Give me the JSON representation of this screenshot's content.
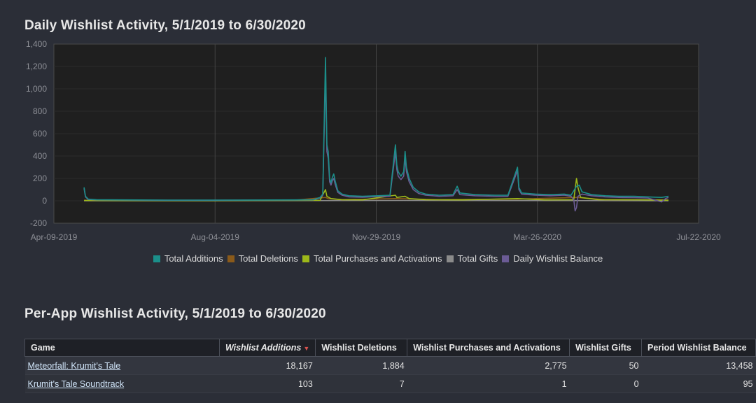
{
  "title_daily": "Daily Wishlist Activity, 5/1/2019 to 6/30/2020",
  "title_per_app": "Per-App Wishlist Activity, 5/1/2019 to 6/30/2020",
  "chart_data": {
    "type": "line",
    "title": "Daily Wishlist Activity, 5/1/2019 to 6/30/2020",
    "xlabel": "",
    "ylabel": "",
    "x_range": [
      "2019-04-09",
      "2020-07-22"
    ],
    "x_ticks": [
      "Apr-09-2019",
      "Aug-04-2019",
      "Nov-29-2019",
      "Mar-26-2020",
      "Jul-22-2020"
    ],
    "ylim": [
      -200,
      1400
    ],
    "y_ticks": [
      "-200",
      "0",
      "200",
      "400",
      "600",
      "800",
      "1,000",
      "1,200",
      "1,400"
    ],
    "grid": true,
    "legend_position": "bottom-center",
    "series": [
      {
        "name": "Total Additions",
        "color": "#1b8f8a",
        "points": [
          [
            "2019-05-01",
            120
          ],
          [
            "2019-05-02",
            40
          ],
          [
            "2019-05-04",
            15
          ],
          [
            "2019-05-10",
            10
          ],
          [
            "2019-06-01",
            8
          ],
          [
            "2019-07-01",
            6
          ],
          [
            "2019-08-01",
            6
          ],
          [
            "2019-09-01",
            7
          ],
          [
            "2019-10-01",
            8
          ],
          [
            "2019-10-15",
            10
          ],
          [
            "2019-10-20",
            30
          ],
          [
            "2019-10-22",
            60
          ],
          [
            "2019-10-24",
            1280
          ],
          [
            "2019-10-25",
            500
          ],
          [
            "2019-10-26",
            440
          ],
          [
            "2019-10-27",
            200
          ],
          [
            "2019-10-28",
            160
          ],
          [
            "2019-10-29",
            210
          ],
          [
            "2019-10-30",
            240
          ],
          [
            "2019-10-31",
            180
          ],
          [
            "2019-11-02",
            90
          ],
          [
            "2019-11-05",
            60
          ],
          [
            "2019-11-10",
            45
          ],
          [
            "2019-11-20",
            40
          ],
          [
            "2019-12-01",
            45
          ],
          [
            "2019-12-10",
            50
          ],
          [
            "2019-12-14",
            500
          ],
          [
            "2019-12-15",
            320
          ],
          [
            "2019-12-16",
            260
          ],
          [
            "2019-12-18",
            220
          ],
          [
            "2019-12-20",
            260
          ],
          [
            "2019-12-21",
            440
          ],
          [
            "2019-12-22",
            300
          ],
          [
            "2019-12-24",
            200
          ],
          [
            "2019-12-27",
            120
          ],
          [
            "2019-12-31",
            80
          ],
          [
            "2020-01-05",
            60
          ],
          [
            "2020-01-15",
            50
          ],
          [
            "2020-01-25",
            55
          ],
          [
            "2020-01-28",
            130
          ],
          [
            "2020-01-30",
            70
          ],
          [
            "2020-02-10",
            55
          ],
          [
            "2020-02-25",
            50
          ],
          [
            "2020-03-05",
            50
          ],
          [
            "2020-03-12",
            300
          ],
          [
            "2020-03-13",
            120
          ],
          [
            "2020-03-15",
            70
          ],
          [
            "2020-03-25",
            60
          ],
          [
            "2020-04-05",
            55
          ],
          [
            "2020-04-15",
            60
          ],
          [
            "2020-04-20",
            50
          ],
          [
            "2020-04-24",
            130
          ],
          [
            "2020-04-26",
            140
          ],
          [
            "2020-04-28",
            80
          ],
          [
            "2020-05-05",
            55
          ],
          [
            "2020-05-15",
            45
          ],
          [
            "2020-05-25",
            40
          ],
          [
            "2020-06-05",
            40
          ],
          [
            "2020-06-15",
            35
          ],
          [
            "2020-06-25",
            30
          ],
          [
            "2020-06-30",
            40
          ]
        ]
      },
      {
        "name": "Total Deletions",
        "color": "#8a5a1a",
        "points": [
          [
            "2019-05-01",
            5
          ],
          [
            "2019-06-01",
            4
          ],
          [
            "2019-07-01",
            3
          ],
          [
            "2019-08-01",
            3
          ],
          [
            "2019-09-01",
            4
          ],
          [
            "2019-10-01",
            5
          ],
          [
            "2019-10-24",
            30
          ],
          [
            "2019-10-26",
            20
          ],
          [
            "2019-11-05",
            10
          ],
          [
            "2019-12-14",
            20
          ],
          [
            "2019-12-21",
            18
          ],
          [
            "2020-01-15",
            10
          ],
          [
            "2020-03-12",
            15
          ],
          [
            "2020-04-24",
            30
          ],
          [
            "2020-05-15",
            10
          ],
          [
            "2020-06-30",
            8
          ]
        ]
      },
      {
        "name": "Total Purchases and Activations",
        "color": "#9db81a",
        "points": [
          [
            "2019-05-01",
            3
          ],
          [
            "2019-06-01",
            2
          ],
          [
            "2019-07-01",
            2
          ],
          [
            "2019-08-01",
            2
          ],
          [
            "2019-09-01",
            3
          ],
          [
            "2019-10-01",
            3
          ],
          [
            "2019-10-20",
            5
          ],
          [
            "2019-10-24",
            100
          ],
          [
            "2019-10-25",
            40
          ],
          [
            "2019-10-28",
            20
          ],
          [
            "2019-11-05",
            10
          ],
          [
            "2019-11-20",
            8
          ],
          [
            "2019-12-14",
            50
          ],
          [
            "2019-12-15",
            30
          ],
          [
            "2019-12-21",
            40
          ],
          [
            "2019-12-24",
            20
          ],
          [
            "2020-01-05",
            10
          ],
          [
            "2020-02-01",
            8
          ],
          [
            "2020-03-12",
            20
          ],
          [
            "2020-04-01",
            8
          ],
          [
            "2020-04-22",
            10
          ],
          [
            "2020-04-24",
            200
          ],
          [
            "2020-04-25",
            120
          ],
          [
            "2020-04-27",
            30
          ],
          [
            "2020-05-10",
            10
          ],
          [
            "2020-06-10",
            8
          ],
          [
            "2020-06-30",
            5
          ]
        ]
      },
      {
        "name": "Total Gifts",
        "color": "#8b8b8b",
        "points": [
          [
            "2019-05-01",
            0
          ],
          [
            "2019-08-01",
            0
          ],
          [
            "2019-10-24",
            2
          ],
          [
            "2019-12-21",
            3
          ],
          [
            "2020-04-24",
            2
          ],
          [
            "2020-06-30",
            0
          ]
        ]
      },
      {
        "name": "Daily Wishlist Balance",
        "color": "#6b5b95",
        "points": [
          [
            "2019-05-01",
            110
          ],
          [
            "2019-05-02",
            35
          ],
          [
            "2019-05-04",
            12
          ],
          [
            "2019-05-10",
            8
          ],
          [
            "2019-06-01",
            6
          ],
          [
            "2019-07-01",
            5
          ],
          [
            "2019-08-01",
            5
          ],
          [
            "2019-09-01",
            6
          ],
          [
            "2019-10-01",
            6
          ],
          [
            "2019-10-15",
            8
          ],
          [
            "2019-10-20",
            25
          ],
          [
            "2019-10-22",
            50
          ],
          [
            "2019-10-24",
            1150
          ],
          [
            "2019-10-25",
            440
          ],
          [
            "2019-10-26",
            380
          ],
          [
            "2019-10-27",
            170
          ],
          [
            "2019-10-28",
            140
          ],
          [
            "2019-10-29",
            180
          ],
          [
            "2019-10-30",
            200
          ],
          [
            "2019-10-31",
            150
          ],
          [
            "2019-11-02",
            75
          ],
          [
            "2019-11-05",
            50
          ],
          [
            "2019-11-10",
            35
          ],
          [
            "2019-11-20",
            32
          ],
          [
            "2019-12-01",
            38
          ],
          [
            "2019-12-10",
            40
          ],
          [
            "2019-12-14",
            440
          ],
          [
            "2019-12-15",
            280
          ],
          [
            "2019-12-16",
            220
          ],
          [
            "2019-12-18",
            190
          ],
          [
            "2019-12-20",
            220
          ],
          [
            "2019-12-21",
            390
          ],
          [
            "2019-12-22",
            260
          ],
          [
            "2019-12-24",
            170
          ],
          [
            "2019-12-27",
            100
          ],
          [
            "2019-12-31",
            65
          ],
          [
            "2020-01-05",
            50
          ],
          [
            "2020-01-15",
            40
          ],
          [
            "2020-01-25",
            45
          ],
          [
            "2020-01-28",
            100
          ],
          [
            "2020-01-30",
            55
          ],
          [
            "2020-02-10",
            45
          ],
          [
            "2020-02-25",
            40
          ],
          [
            "2020-03-05",
            40
          ],
          [
            "2020-03-12",
            270
          ],
          [
            "2020-03-13",
            100
          ],
          [
            "2020-03-15",
            60
          ],
          [
            "2020-03-25",
            50
          ],
          [
            "2020-04-05",
            45
          ],
          [
            "2020-04-15",
            50
          ],
          [
            "2020-04-20",
            40
          ],
          [
            "2020-04-22",
            10
          ],
          [
            "2020-04-23",
            -90
          ],
          [
            "2020-04-24",
            -60
          ],
          [
            "2020-04-25",
            40
          ],
          [
            "2020-04-28",
            60
          ],
          [
            "2020-05-05",
            45
          ],
          [
            "2020-05-15",
            35
          ],
          [
            "2020-05-25",
            30
          ],
          [
            "2020-06-05",
            28
          ],
          [
            "2020-06-15",
            25
          ],
          [
            "2020-06-25",
            -10
          ],
          [
            "2020-06-28",
            20
          ],
          [
            "2020-06-30",
            30
          ]
        ]
      }
    ]
  },
  "table": {
    "headers": [
      "Game",
      "Wishlist Additions",
      "Wishlist Deletions",
      "Wishlist Purchases and Activations",
      "Wishlist Gifts",
      "Period Wishlist Balance"
    ],
    "sort_indicator": "▼",
    "rows": [
      [
        "Meteorfall: Krumit's Tale",
        "18,167",
        "1,884",
        "2,775",
        "50",
        "13,458"
      ],
      [
        "Krumit's Tale Soundtrack",
        "103",
        "7",
        "1",
        "0",
        "95"
      ]
    ]
  }
}
